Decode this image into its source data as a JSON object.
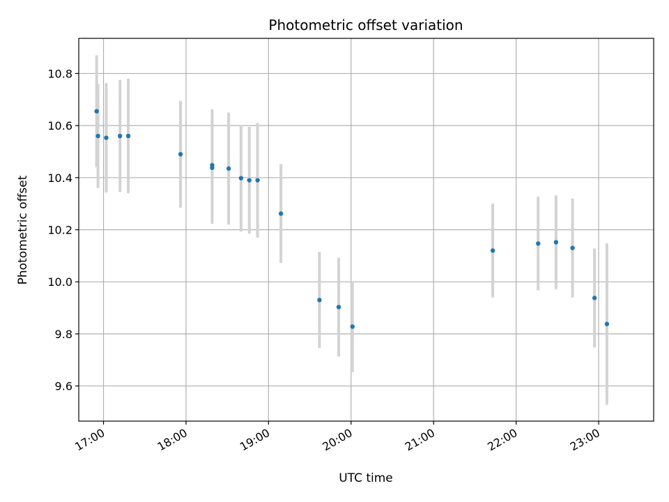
{
  "chart_data": {
    "type": "scatter",
    "title": "Photometric offset variation",
    "xlabel": "UTC time",
    "ylabel": "Photometric offset",
    "x_unit": "UTC time (HH:MM)",
    "x_tick_labels": [
      "17:00",
      "18:00",
      "19:00",
      "20:00",
      "21:00",
      "22:00",
      "23:00"
    ],
    "y_tick_labels": [
      "9.6",
      "9.8",
      "10.0",
      "10.2",
      "10.4",
      "10.6",
      "10.8"
    ],
    "xlim": [
      "16:42",
      "23:40"
    ],
    "ylim": [
      9.465,
      10.935
    ],
    "grid": true,
    "series": [
      {
        "points": [
          {
            "x": "16:55",
            "y": 10.655,
            "err": 0.215
          },
          {
            "x": "16:56",
            "y": 10.56,
            "err": 0.2
          },
          {
            "x": "17:02",
            "y": 10.553,
            "err": 0.21
          },
          {
            "x": "17:12",
            "y": 10.56,
            "err": 0.215
          },
          {
            "x": "17:18",
            "y": 10.56,
            "err": 0.22
          },
          {
            "x": "17:56",
            "y": 10.49,
            "err": 0.205
          },
          {
            "x": "18:19",
            "y": 10.448,
            "err": 0.215
          },
          {
            "x": "18:19",
            "y": 10.438,
            "err": 0.215
          },
          {
            "x": "18:31",
            "y": 10.435,
            "err": 0.215
          },
          {
            "x": "18:40",
            "y": 10.398,
            "err": 0.205
          },
          {
            "x": "18:46",
            "y": 10.39,
            "err": 0.205
          },
          {
            "x": "18:52",
            "y": 10.39,
            "err": 0.22
          },
          {
            "x": "19:09",
            "y": 10.262,
            "err": 0.19
          },
          {
            "x": "19:37",
            "y": 9.93,
            "err": 0.185
          },
          {
            "x": "19:51",
            "y": 9.903,
            "err": 0.19
          },
          {
            "x": "20:01",
            "y": 9.828,
            "err": 0.175
          },
          {
            "x": "21:43",
            "y": 10.12,
            "err": 0.18
          },
          {
            "x": "22:16",
            "y": 10.147,
            "err": 0.18
          },
          {
            "x": "22:29",
            "y": 10.152,
            "err": 0.18
          },
          {
            "x": "22:41",
            "y": 10.13,
            "err": 0.19
          },
          {
            "x": "22:57",
            "y": 9.938,
            "err": 0.19
          },
          {
            "x": "23:06",
            "y": 9.838,
            "err": 0.31
          }
        ]
      }
    ],
    "colors": {
      "point": "#1f77b4",
      "errorbar": "#d3d3d3",
      "grid": "#b0b0b0",
      "axis": "#000000"
    }
  }
}
